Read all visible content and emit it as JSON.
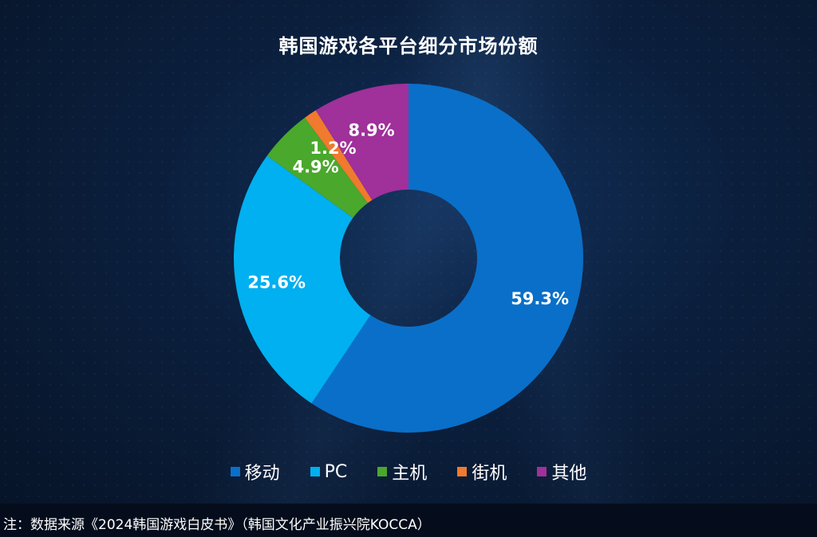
{
  "chart_data": {
    "type": "pie",
    "title": "韩国游戏各平台细分市场份额",
    "categories": [
      "移动",
      "PC",
      "主机",
      "街机",
      "其他"
    ],
    "values": [
      59.3,
      25.6,
      4.9,
      1.2,
      8.9
    ],
    "value_labels": [
      "59.3%",
      "25.6%",
      "4.9%",
      "1.2%",
      "8.9%"
    ],
    "colors": [
      "#0a6fc8",
      "#00b0f0",
      "#4aa82c",
      "#f07a2e",
      "#a0309a"
    ],
    "donut": true,
    "legend_position": "bottom"
  },
  "footer": {
    "note": "注：数据来源《2024韩国游戏白皮书》（韩国文化产业振兴院KOCCA）"
  }
}
